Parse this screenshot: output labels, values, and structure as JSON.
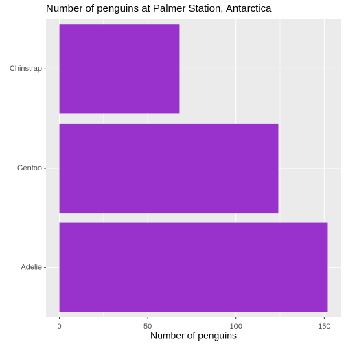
{
  "chart_data": {
    "type": "bar",
    "orientation": "horizontal",
    "title": "Number of penguins at Palmer Station, Antarctica",
    "x_label": "Number of penguins",
    "categories": [
      "Adelie",
      "Gentoo",
      "Chinstrap"
    ],
    "values": [
      152,
      124,
      68
    ],
    "color": "#9932cc",
    "xlim": [
      -7.6,
      159.6
    ],
    "xticks": [
      0,
      50,
      100,
      150
    ],
    "minor_xticks": [
      25,
      75,
      125
    ],
    "grid": true
  }
}
